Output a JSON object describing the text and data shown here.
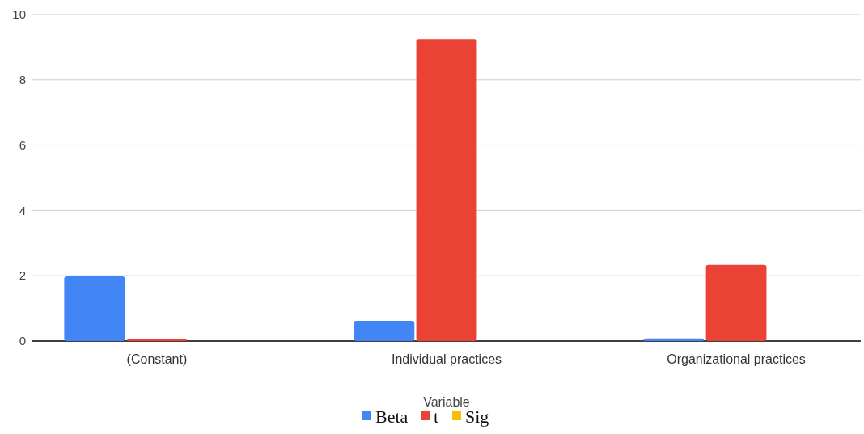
{
  "chart_data": {
    "type": "bar",
    "xlabel": "Variable",
    "categories": [
      "(Constant)",
      "Individual practices",
      "Organizational practices"
    ],
    "series": [
      {
        "name": "Beta",
        "color": "#4285f4",
        "values": [
          1.98,
          0.62,
          0.08
        ]
      },
      {
        "name": "t",
        "color": "#ea4335",
        "values": [
          0.05,
          9.25,
          2.33
        ]
      },
      {
        "name": "Sig",
        "color": "#fbbc04",
        "values": [
          0,
          0,
          0
        ]
      }
    ],
    "ylim": [
      0,
      10
    ],
    "yticks": [
      0,
      2,
      4,
      6,
      8,
      10
    ],
    "grid": "y",
    "legend": "bottom"
  }
}
